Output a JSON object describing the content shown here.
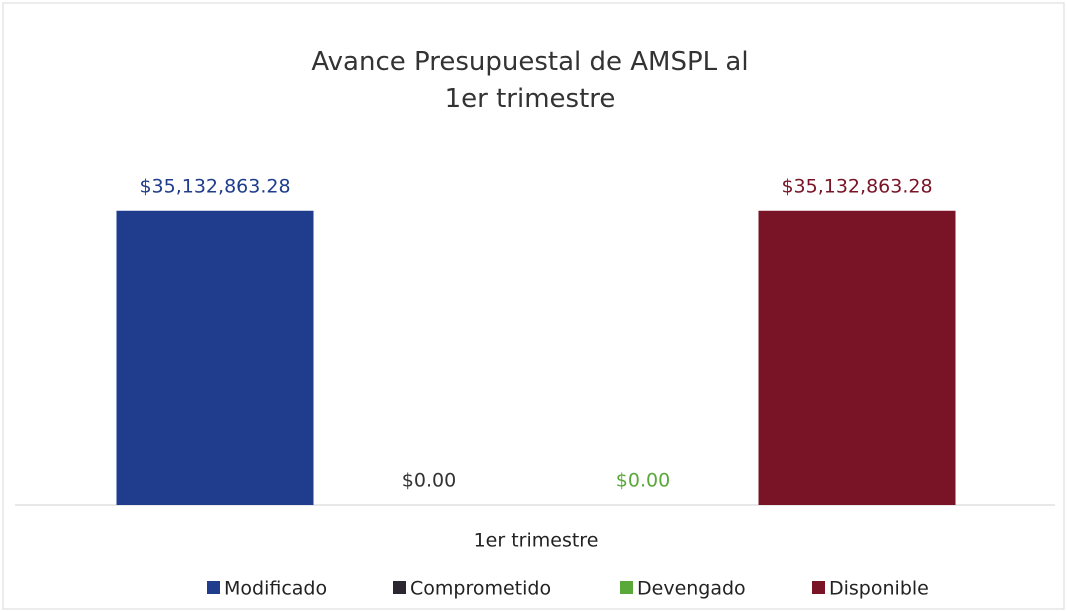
{
  "chart_data": {
    "type": "bar",
    "title": "Avance Presupuestal de AMSPL al 1er trimestre",
    "categories": [
      "1er trimestre"
    ],
    "series": [
      {
        "name": "Modificado",
        "color": "#1f3d8c",
        "values": [
          35132863.28
        ],
        "value_labels": [
          "$35,132,863.28"
        ]
      },
      {
        "name": "Comprometido",
        "color": "#2b2630",
        "values": [
          0
        ],
        "value_labels": [
          "$0.00"
        ]
      },
      {
        "name": "Devengado",
        "color": "#5ba83a",
        "values": [
          0
        ],
        "value_labels": [
          "$0.00"
        ]
      },
      {
        "name": "Disponible",
        "color": "#781426",
        "values": [
          35132863.28
        ],
        "value_labels": [
          "$35,132,863.28"
        ]
      }
    ],
    "ylim": [
      0,
      40000000
    ],
    "legend": "bottom"
  }
}
